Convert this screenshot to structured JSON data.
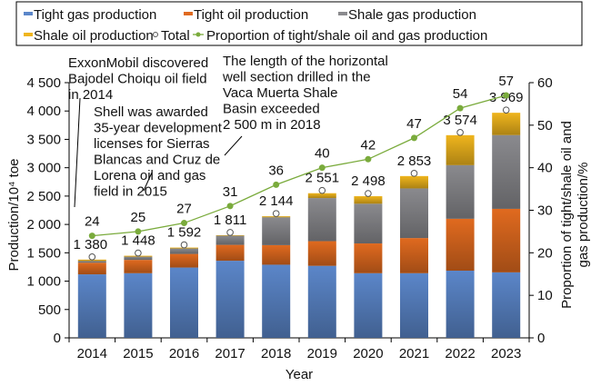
{
  "chart_data": {
    "type": "bar",
    "stacked": true,
    "categories": [
      "2014",
      "2015",
      "2016",
      "2017",
      "2018",
      "2019",
      "2020",
      "2021",
      "2022",
      "2023"
    ],
    "series": [
      {
        "name": "Tight gas production",
        "color": "#5b86c9",
        "values": [
          1120,
          1140,
          1240,
          1360,
          1290,
          1270,
          1140,
          1140,
          1185,
          1155
        ]
      },
      {
        "name": "Tight oil production",
        "color": "#e06a1f",
        "values": [
          205,
          235,
          240,
          280,
          345,
          435,
          525,
          620,
          915,
          1120
        ]
      },
      {
        "name": "Shale gas production",
        "color": "#8a8a8e",
        "values": [
          30,
          55,
          95,
          160,
          490,
          760,
          700,
          875,
          945,
          1300
        ]
      },
      {
        "name": "Shale oil production",
        "color": "#efb51d",
        "values": [
          25,
          18,
          17,
          11,
          19,
          86,
          133,
          218,
          529,
          394
        ]
      }
    ],
    "total": {
      "name": "Total",
      "values": [
        1380,
        1448,
        1592,
        1811,
        2144,
        2551,
        2498,
        2853,
        3574,
        3969
      ],
      "labels": [
        "1 380",
        "1 448",
        "1 592",
        "1 811",
        "2 144",
        "2 551",
        "2 498",
        "2 853",
        "3 574",
        "3 969"
      ]
    },
    "proportion": {
      "name": "Proportion of tight/shale oil and gas production",
      "color": "#7aab3c",
      "values": [
        24,
        25,
        27,
        31,
        36,
        40,
        42,
        47,
        54,
        57
      ]
    },
    "xlabel": "Year",
    "ylabel": "Production/10⁴ toe",
    "y2label_lines": [
      "Proportion of tight/shale oil and",
      "gas production/%"
    ],
    "ylim": [
      0,
      4500
    ],
    "yticks": [
      "0",
      "500",
      "1 000",
      "1 500",
      "2 000",
      "2 500",
      "3 000",
      "3 500",
      "4 000",
      "4 500"
    ],
    "y2lim": [
      0,
      60
    ],
    "y2ticks": [
      "0",
      "10",
      "20",
      "30",
      "40",
      "50",
      "60"
    ],
    "grid": false,
    "legend_position": "top",
    "annotations": [
      {
        "lines": [
          "ExxonMobil discovered",
          "Bajodel Choiqu oil field",
          "in 2014"
        ]
      },
      {
        "lines": [
          "Shell was awarded",
          "35-year development",
          "licenses for Sierras",
          "Blancas and Cruz de",
          "Lorena oil and gas",
          "field in 2015"
        ]
      },
      {
        "lines": [
          "The length of the horizontal",
          "well section drilled in the",
          "Vaca Muerta Shale",
          "Basin exceeded",
          "2 500 m in 2018"
        ]
      }
    ]
  }
}
